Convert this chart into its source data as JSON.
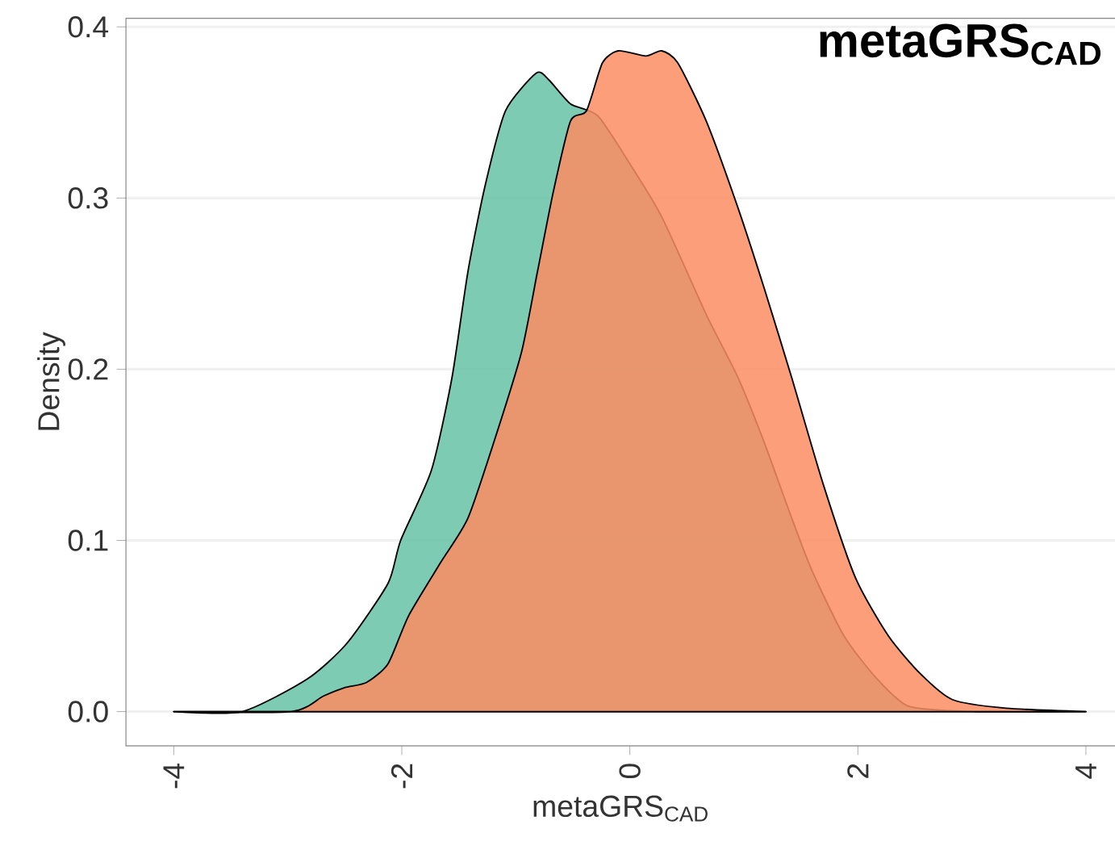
{
  "chart_data": {
    "type": "area",
    "title": "metaGRS$_{CAD}$",
    "xlabel": "metaGRS$_{CAD}$",
    "ylabel": "Density",
    "xlim": [
      -4.42,
      4.26
    ],
    "ylim": [
      -0.02,
      0.405
    ],
    "xticks": [
      -4,
      -2,
      0,
      2,
      4
    ],
    "yticks": [
      {
        "value": 0,
        "label": "0.0"
      },
      0.1,
      0.2,
      0.3,
      0.4
    ],
    "grid": "y",
    "series": [
      {
        "color": "#66c2a5",
        "x": [
          -4.0,
          -3.4,
          -2.83,
          -2.48,
          -2.12,
          -2.01,
          -1.74,
          -1.56,
          -1.42,
          -1.27,
          -1.09,
          -0.82,
          -0.71,
          -0.52,
          -0.28,
          0.0,
          0.28,
          0.67,
          0.95,
          1.18,
          1.42,
          1.6,
          1.88,
          2.17,
          2.45,
          3.0,
          4.0
        ],
        "values": [
          0,
          0,
          0.019,
          0.04,
          0.075,
          0.1,
          0.141,
          0.195,
          0.257,
          0.307,
          0.351,
          0.373,
          0.369,
          0.355,
          0.348,
          0.32,
          0.289,
          0.232,
          0.195,
          0.157,
          0.113,
          0.082,
          0.044,
          0.019,
          0.003,
          0,
          0
        ]
      },
      {
        "color": "#fc8d62",
        "x": [
          -4.0,
          -2.97,
          -2.69,
          -2.5,
          -2.31,
          -2.12,
          -1.94,
          -1.66,
          -1.42,
          -1.18,
          -0.95,
          -0.81,
          -0.67,
          -0.52,
          -0.38,
          -0.24,
          -0.1,
          0.14,
          0.28,
          0.42,
          0.67,
          0.95,
          1.18,
          1.42,
          1.7,
          1.98,
          2.27,
          2.55,
          2.83,
          3.3,
          4.0
        ],
        "values": [
          0,
          0,
          0.009,
          0.014,
          0.017,
          0.028,
          0.056,
          0.087,
          0.113,
          0.16,
          0.21,
          0.257,
          0.304,
          0.345,
          0.351,
          0.379,
          0.386,
          0.383,
          0.386,
          0.379,
          0.345,
          0.294,
          0.247,
          0.195,
          0.132,
          0.078,
          0.044,
          0.022,
          0.007,
          0.002,
          0
        ]
      }
    ]
  }
}
